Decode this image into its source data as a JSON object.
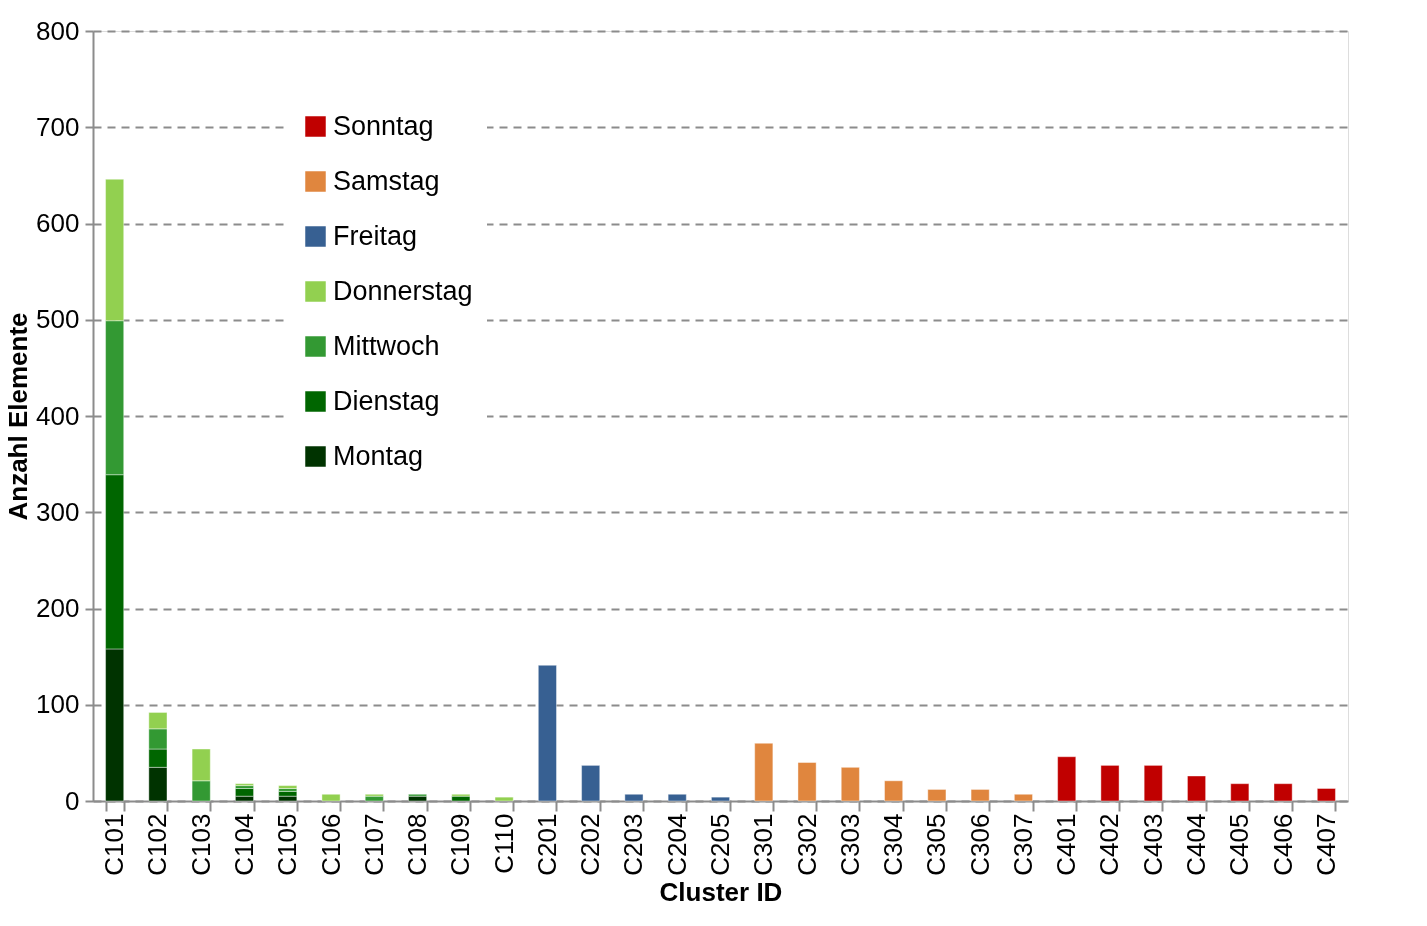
{
  "chart_data": {
    "type": "bar",
    "stacked": true,
    "xlabel": "Cluster ID",
    "ylabel": "Anzahl Elemente",
    "categories": [
      "C101",
      "C102",
      "C103",
      "C104",
      "C105",
      "C106",
      "C107",
      "C108",
      "C109",
      "C110",
      "C201",
      "C202",
      "C203",
      "C204",
      "C205",
      "C301",
      "C302",
      "C303",
      "C304",
      "C305",
      "C306",
      "C307",
      "C401",
      "C402",
      "C403",
      "C404",
      "C405",
      "C406",
      "C407"
    ],
    "series": [
      {
        "name": "Montag",
        "color": "#003300",
        "values": [
          158,
          35,
          null,
          5,
          5,
          null,
          null,
          5,
          null,
          null,
          null,
          null,
          null,
          null,
          null,
          null,
          null,
          null,
          null,
          null,
          null,
          null,
          null,
          null,
          null,
          null,
          null,
          null,
          null
        ]
      },
      {
        "name": "Dienstag",
        "color": "#006600",
        "values": [
          181,
          19,
          null,
          8,
          5,
          null,
          null,
          null,
          5,
          null,
          null,
          null,
          null,
          null,
          null,
          null,
          null,
          null,
          null,
          null,
          null,
          null,
          null,
          null,
          null,
          null,
          null,
          null,
          null
        ]
      },
      {
        "name": "Mittwoch",
        "color": "#339933",
        "values": [
          160,
          21,
          21,
          3,
          3,
          null,
          5,
          2,
          null,
          null,
          null,
          null,
          null,
          null,
          null,
          null,
          null,
          null,
          null,
          null,
          null,
          null,
          null,
          null,
          null,
          null,
          null,
          null,
          null
        ]
      },
      {
        "name": "Donnerstag",
        "color": "#92d050",
        "values": [
          147,
          17,
          33,
          2,
          3,
          7,
          2,
          null,
          2,
          4,
          null,
          null,
          null,
          null,
          null,
          null,
          null,
          null,
          null,
          null,
          null,
          null,
          null,
          null,
          null,
          null,
          null,
          null,
          null
        ]
      },
      {
        "name": "Freitag",
        "color": "#376092",
        "values": [
          null,
          null,
          null,
          null,
          null,
          null,
          null,
          null,
          null,
          null,
          141,
          37,
          7,
          7,
          4,
          null,
          null,
          null,
          null,
          null,
          null,
          null,
          null,
          null,
          null,
          null,
          null,
          null,
          null
        ]
      },
      {
        "name": "Samstag",
        "color": "#e0863e",
        "values": [
          null,
          null,
          null,
          null,
          null,
          null,
          null,
          null,
          null,
          null,
          null,
          null,
          null,
          null,
          null,
          60,
          40,
          35,
          21,
          12,
          12,
          7,
          null,
          null,
          null,
          null,
          null,
          null,
          null
        ]
      },
      {
        "name": "Sonntag",
        "color": "#c00000",
        "values": [
          null,
          null,
          null,
          null,
          null,
          null,
          null,
          null,
          null,
          null,
          null,
          null,
          null,
          null,
          null,
          null,
          null,
          null,
          null,
          null,
          null,
          null,
          46,
          37,
          37,
          26,
          18,
          18,
          13
        ]
      }
    ],
    "ylim": [
      0,
      800
    ],
    "yticks": [
      0,
      100,
      200,
      300,
      400,
      500,
      600,
      700,
      800
    ],
    "grid": "y",
    "legend": "top left"
  }
}
